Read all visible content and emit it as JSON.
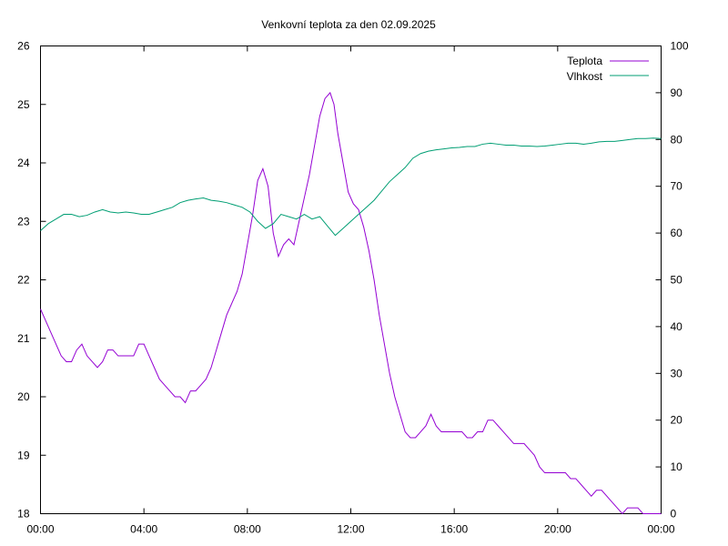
{
  "chart_data": {
    "type": "line",
    "title": "Venkovní teplota za den 02.09.2025",
    "xlabel": "",
    "ylabel": "",
    "y2label": "",
    "x_ticks": [
      "00:00",
      "04:00",
      "08:00",
      "12:00",
      "16:00",
      "20:00",
      "00:00"
    ],
    "xlim": [
      0,
      24
    ],
    "ylim": [
      18,
      26
    ],
    "y2lim": [
      0,
      100
    ],
    "y_ticks": [
      18,
      19,
      20,
      21,
      22,
      23,
      24,
      25,
      26
    ],
    "y2_ticks": [
      0,
      10,
      20,
      30,
      40,
      50,
      60,
      70,
      80,
      90,
      100
    ],
    "legend": "top-right",
    "grid": false,
    "series": [
      {
        "name": "Teplota",
        "axis": "left",
        "color": "#9400d3",
        "x": [
          0,
          0.2,
          0.4,
          0.6,
          0.8,
          1.0,
          1.2,
          1.4,
          1.6,
          1.8,
          2.0,
          2.2,
          2.4,
          2.6,
          2.8,
          3.0,
          3.2,
          3.4,
          3.6,
          3.8,
          4.0,
          4.2,
          4.4,
          4.6,
          4.8,
          5.0,
          5.2,
          5.4,
          5.6,
          5.8,
          6.0,
          6.2,
          6.4,
          6.6,
          6.8,
          7.0,
          7.2,
          7.4,
          7.6,
          7.8,
          8.0,
          8.2,
          8.4,
          8.6,
          8.8,
          8.9,
          9.0,
          9.2,
          9.4,
          9.6,
          9.8,
          10.0,
          10.2,
          10.4,
          10.6,
          10.8,
          11.0,
          11.2,
          11.35,
          11.5,
          11.7,
          11.9,
          12.1,
          12.3,
          12.5,
          12.7,
          12.9,
          13.1,
          13.3,
          13.5,
          13.7,
          13.9,
          14.1,
          14.3,
          14.5,
          14.7,
          14.9,
          15.1,
          15.3,
          15.5,
          15.7,
          15.9,
          16.1,
          16.3,
          16.5,
          16.7,
          16.9,
          17.1,
          17.3,
          17.5,
          17.7,
          17.9,
          18.1,
          18.3,
          18.5,
          18.7,
          18.9,
          19.1,
          19.3,
          19.5,
          19.7,
          19.9,
          20.1,
          20.3,
          20.5,
          20.7,
          20.9,
          21.1,
          21.3,
          21.5,
          21.7,
          21.9,
          22.1,
          22.3,
          22.5,
          22.7,
          22.9,
          23.1,
          23.3,
          23.5,
          23.7,
          23.9,
          24.0
        ],
        "values": [
          21.5,
          21.3,
          21.1,
          20.9,
          20.7,
          20.6,
          20.6,
          20.8,
          20.9,
          20.7,
          20.6,
          20.5,
          20.6,
          20.8,
          20.8,
          20.7,
          20.7,
          20.7,
          20.7,
          20.9,
          20.9,
          20.7,
          20.5,
          20.3,
          20.2,
          20.1,
          20.0,
          20.0,
          19.9,
          20.1,
          20.1,
          20.2,
          20.3,
          20.5,
          20.8,
          21.1,
          21.4,
          21.6,
          21.8,
          22.1,
          22.6,
          23.1,
          23.7,
          23.9,
          23.6,
          23.2,
          22.8,
          22.4,
          22.6,
          22.7,
          22.6,
          23.0,
          23.4,
          23.8,
          24.3,
          24.8,
          25.1,
          25.2,
          25.0,
          24.5,
          24.0,
          23.5,
          23.3,
          23.2,
          22.9,
          22.5,
          22.0,
          21.4,
          20.9,
          20.4,
          20.0,
          19.7,
          19.4,
          19.3,
          19.3,
          19.4,
          19.5,
          19.7,
          19.5,
          19.4,
          19.4,
          19.4,
          19.4,
          19.4,
          19.3,
          19.3,
          19.4,
          19.4,
          19.6,
          19.6,
          19.5,
          19.4,
          19.3,
          19.2,
          19.2,
          19.2,
          19.1,
          19.0,
          18.8,
          18.7,
          18.7,
          18.7,
          18.7,
          18.7,
          18.6,
          18.6,
          18.5,
          18.4,
          18.3,
          18.4,
          18.4,
          18.3,
          18.2,
          18.1,
          18.0,
          18.1,
          18.1,
          18.1,
          18.0,
          18.0,
          18.0,
          18.0,
          18.0
        ],
        "note_end": ""
      },
      {
        "name": "Vlhkost",
        "axis": "right",
        "color": "#009e73",
        "x": [
          0,
          0.3,
          0.6,
          0.9,
          1.2,
          1.5,
          1.8,
          2.1,
          2.4,
          2.7,
          3.0,
          3.3,
          3.6,
          3.9,
          4.2,
          4.5,
          4.8,
          5.1,
          5.4,
          5.7,
          6.0,
          6.3,
          6.6,
          6.9,
          7.2,
          7.5,
          7.8,
          8.1,
          8.4,
          8.7,
          9.0,
          9.3,
          9.6,
          9.9,
          10.2,
          10.5,
          10.8,
          11.1,
          11.4,
          11.7,
          12.0,
          12.3,
          12.6,
          12.9,
          13.2,
          13.5,
          13.8,
          14.1,
          14.4,
          14.7,
          15.0,
          15.3,
          15.6,
          15.9,
          16.2,
          16.5,
          16.8,
          17.1,
          17.4,
          17.7,
          18.0,
          18.3,
          18.6,
          18.9,
          19.2,
          19.5,
          19.8,
          20.1,
          20.4,
          20.7,
          21.0,
          21.3,
          21.6,
          21.9,
          22.2,
          22.5,
          22.8,
          23.1,
          23.4,
          23.7,
          24.0
        ],
        "values": [
          60.5,
          62,
          63,
          64,
          64,
          63.5,
          63.8,
          64.5,
          65,
          64.5,
          64.3,
          64.5,
          64.3,
          64,
          64,
          64.5,
          65,
          65.5,
          66.5,
          67,
          67.3,
          67.5,
          67,
          66.8,
          66.5,
          66,
          65.5,
          64.5,
          62.5,
          61,
          62,
          64,
          63.5,
          63,
          64,
          63,
          63.5,
          61.5,
          59.5,
          61,
          62.5,
          64,
          65.5,
          67,
          69,
          71,
          72.5,
          74,
          76,
          77,
          77.5,
          77.8,
          78,
          78.2,
          78.3,
          78.5,
          78.5,
          79,
          79.2,
          79,
          78.8,
          78.8,
          78.6,
          78.6,
          78.5,
          78.6,
          78.8,
          79,
          79.2,
          79.2,
          79,
          79.2,
          79.5,
          79.6,
          79.6,
          79.8,
          80,
          80.2,
          80.2,
          80.3,
          80.2
        ]
      }
    ]
  }
}
